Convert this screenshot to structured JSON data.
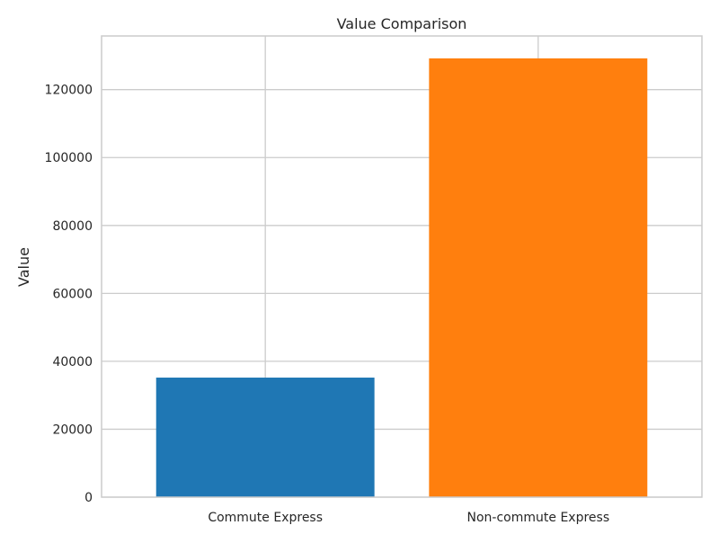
{
  "chart_data": {
    "type": "bar",
    "title": "Value Comparison",
    "xlabel": "",
    "ylabel": "Value",
    "categories": [
      "Commute Express",
      "Non-commute Express"
    ],
    "values": [
      35200,
      129200
    ],
    "colors": [
      "#1f77b4",
      "#ff7f0e"
    ],
    "ylim": [
      0,
      135800
    ],
    "yticks": [
      0,
      20000,
      40000,
      60000,
      80000,
      100000,
      120000
    ],
    "grid": true,
    "style": {
      "grid_color": "#cccccc",
      "spine_color": "#cccccc",
      "text_color": "#262626"
    }
  }
}
